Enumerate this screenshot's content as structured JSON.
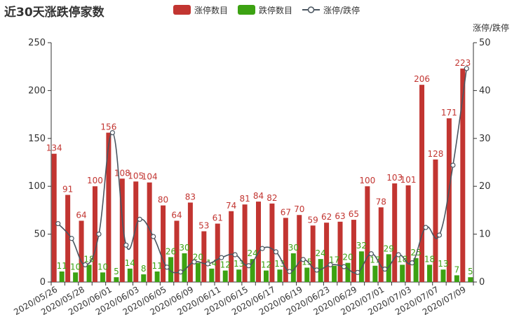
{
  "chart_data": {
    "type": "bar",
    "title": "近30天涨跌停家数",
    "legend": [
      "涨停数目",
      "跌停数目",
      "涨停/跌停"
    ],
    "legend_position": "top",
    "y_right_label": "涨停/跌停",
    "colors": {
      "up": "#c23531",
      "down": "#3ca212",
      "ratio": "#4a5560",
      "axis": "#333333",
      "up_label": "#c23531",
      "down_label": "#3ca212"
    },
    "categories": [
      "2020/05/26",
      "2020/05/27",
      "2020/05/28",
      "2020/05/29",
      "2020/06/01",
      "2020/06/02",
      "2020/06/03",
      "2020/06/04",
      "2020/06/05",
      "2020/06/08",
      "2020/06/09",
      "2020/06/10",
      "2020/06/11",
      "2020/06/12",
      "2020/06/15",
      "2020/06/16",
      "2020/06/17",
      "2020/06/18",
      "2020/06/19",
      "2020/06/22",
      "2020/06/23",
      "2020/06/24",
      "2020/06/29",
      "2020/06/30",
      "2020/07/01",
      "2020/07/02",
      "2020/07/03",
      "2020/07/06",
      "2020/07/07",
      "2020/07/08",
      "2020/07/09"
    ],
    "series": [
      {
        "name": "涨停数目",
        "axis": "left",
        "values": [
          134,
          91,
          64,
          100,
          156,
          108,
          105,
          104,
          80,
          64,
          83,
          53,
          61,
          74,
          81,
          84,
          82,
          67,
          70,
          59,
          62,
          63,
          65,
          100,
          78,
          103,
          101,
          206,
          128,
          171,
          223
        ]
      },
      {
        "name": "跌停数目",
        "axis": "left",
        "values": [
          11,
          10,
          18,
          10,
          5,
          14,
          8,
          11,
          26,
          30,
          20,
          14,
          12,
          13,
          24,
          12,
          13,
          30,
          15,
          24,
          17,
          20,
          32,
          17,
          29,
          18,
          25,
          18,
          13,
          7,
          5
        ]
      },
      {
        "name": "涨停/跌停",
        "axis": "right",
        "values": [
          12.2,
          9.1,
          3.6,
          10.0,
          31.2,
          7.7,
          13.1,
          9.5,
          3.1,
          2.1,
          4.2,
          3.8,
          5.1,
          5.7,
          3.4,
          7.0,
          6.3,
          2.2,
          4.7,
          2.5,
          3.6,
          3.2,
          2.0,
          5.9,
          2.7,
          5.7,
          4.0,
          11.4,
          9.8,
          24.4,
          44.6
        ]
      }
    ],
    "ylim_left": [
      0,
      250
    ],
    "yticks_left": [
      0,
      50,
      100,
      150,
      200,
      250
    ],
    "ylim_right": [
      0,
      50
    ],
    "yticks_right": [
      0,
      10,
      20,
      30,
      40,
      50
    ],
    "x_tick_labels": [
      "2020/05/26",
      "2020/05/28",
      "2020/06/01",
      "2020/06/03",
      "2020/06/05",
      "2020/06/09",
      "2020/06/11",
      "2020/06/15",
      "2020/06/17",
      "2020/06/19",
      "2020/06/23",
      "2020/06/29",
      "2020/07/01",
      "2020/07/03",
      "2020/07/07",
      "2020/07/09"
    ],
    "grid": false
  }
}
